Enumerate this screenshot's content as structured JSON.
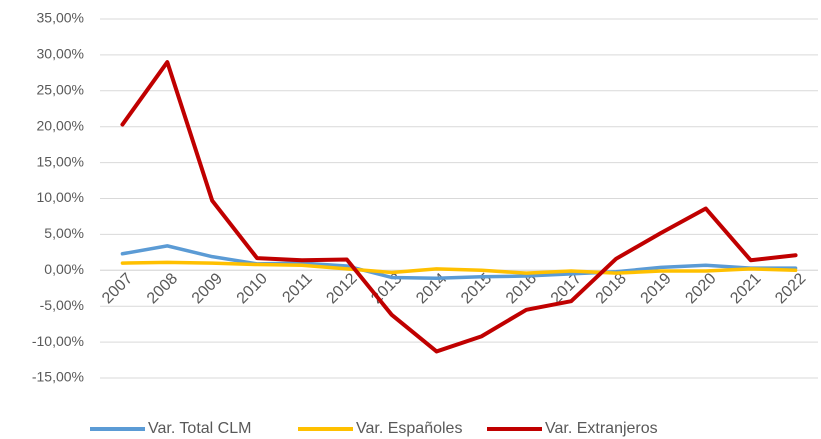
{
  "chart_data": {
    "type": "line",
    "categories": [
      "2007",
      "2008",
      "2009",
      "2010",
      "2011",
      "2012",
      "2013",
      "2014",
      "2015",
      "2016",
      "2017",
      "2018",
      "2019",
      "2020",
      "2021",
      "2022"
    ],
    "series": [
      {
        "name": "Var. Total CLM",
        "color": "#5b9bd5",
        "values": [
          2.3,
          3.4,
          1.9,
          0.9,
          1.0,
          0.6,
          -1.0,
          -1.1,
          -0.9,
          -0.8,
          -0.5,
          -0.2,
          0.4,
          0.7,
          0.3,
          0.3
        ]
      },
      {
        "name": "Var. Españoles",
        "color": "#ffc000",
        "values": [
          1.0,
          1.1,
          1.0,
          0.8,
          0.7,
          0.2,
          -0.3,
          0.2,
          0.0,
          -0.4,
          -0.1,
          -0.4,
          -0.1,
          -0.1,
          0.2,
          0.0
        ]
      },
      {
        "name": "Var. Extranjeros",
        "color": "#c00000",
        "values": [
          20.3,
          29.0,
          9.7,
          1.7,
          1.4,
          1.5,
          -6.2,
          -11.3,
          -9.2,
          -5.5,
          -4.3,
          1.6,
          5.2,
          8.6,
          1.4,
          2.1
        ]
      }
    ],
    "ylim": [
      -15,
      35
    ],
    "yticks": [
      {
        "value": -15,
        "label": "-15,00%"
      },
      {
        "value": -10,
        "label": "-10,00%"
      },
      {
        "value": -5,
        "label": "-5,00%"
      },
      {
        "value": 0,
        "label": "0,00%"
      },
      {
        "value": 5,
        "label": "5,00%"
      },
      {
        "value": 10,
        "label": "10,00%"
      },
      {
        "value": 15,
        "label": "15,00%"
      },
      {
        "value": 20,
        "label": "20,00%"
      },
      {
        "value": 25,
        "label": "25,00%"
      },
      {
        "value": 30,
        "label": "30,00%"
      },
      {
        "value": 35,
        "label": "35,00%"
      }
    ],
    "grid": true,
    "legend": "bottom"
  }
}
